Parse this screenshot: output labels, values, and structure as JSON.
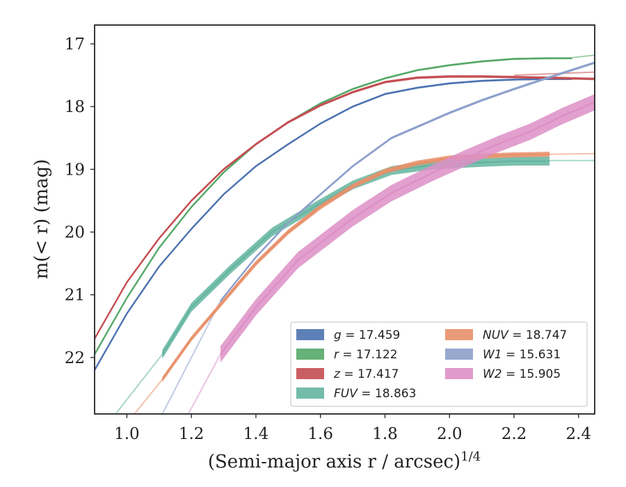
{
  "chart_data": {
    "type": "line",
    "xlabel": "(Semi-major axis r / arcsec)",
    "xlabel_sup": "1/4",
    "ylabel": "m(< r) (mag)",
    "xlim": [
      0.9,
      2.45
    ],
    "ylim": [
      22.9,
      16.7
    ],
    "y_inverted": true,
    "grid": false,
    "legend_placement": "lower-right",
    "xticks": [
      "1.0",
      "1.2",
      "1.4",
      "1.6",
      "1.8",
      "2.0",
      "2.2",
      "2.4"
    ],
    "yticks": [
      "17",
      "18",
      "19",
      "20",
      "21",
      "22"
    ],
    "series": [
      {
        "name": "g = 17.459",
        "label_var": "g",
        "label_val": "17.459",
        "color": "#4c72b0",
        "width_mag": 0.03,
        "x": [
          0.9,
          1.0,
          1.1,
          1.2,
          1.3,
          1.4,
          1.5,
          1.6,
          1.7,
          1.8,
          1.9,
          2.0,
          2.1,
          2.2,
          2.3,
          2.38
        ],
        "y": [
          22.2,
          21.3,
          20.55,
          19.95,
          19.4,
          18.95,
          18.6,
          18.27,
          18.0,
          17.8,
          17.7,
          17.63,
          17.59,
          17.57,
          17.56,
          17.56
        ],
        "ext_x": [
          2.38,
          2.45
        ],
        "ext_y": [
          17.56,
          17.55
        ]
      },
      {
        "name": "r = 17.122",
        "label_var": "r",
        "label_val": "17.122",
        "color": "#55a868",
        "width_mag": 0.03,
        "x": [
          0.9,
          1.0,
          1.1,
          1.2,
          1.3,
          1.4,
          1.5,
          1.6,
          1.7,
          1.8,
          1.9,
          2.0,
          2.1,
          2.2,
          2.3,
          2.38
        ],
        "y": [
          21.95,
          21.05,
          20.25,
          19.6,
          19.05,
          18.6,
          18.25,
          17.95,
          17.72,
          17.55,
          17.42,
          17.34,
          17.28,
          17.24,
          17.23,
          17.23
        ],
        "ext_x": [
          2.38,
          2.45
        ],
        "ext_y": [
          17.22,
          17.18
        ]
      },
      {
        "name": "z = 17.417",
        "label_var": "z",
        "label_val": "17.417",
        "color": "#c44e52",
        "width_mag": 0.04,
        "x": [
          0.9,
          1.0,
          1.1,
          1.2,
          1.3,
          1.4,
          1.5,
          1.6,
          1.7,
          1.8,
          1.9,
          2.0,
          2.1,
          2.2,
          2.3,
          2.45
        ],
        "y": [
          21.7,
          20.8,
          20.1,
          19.5,
          19.0,
          18.6,
          18.25,
          17.98,
          17.77,
          17.61,
          17.54,
          17.52,
          17.52,
          17.53,
          17.54,
          17.56
        ],
        "ext_x": [
          2.2,
          2.45
        ],
        "ext_y": [
          17.5,
          17.45
        ]
      },
      {
        "name": "FUV = 18.863",
        "label_var": "FUV",
        "label_val": "18.863",
        "color": "#64b5a0",
        "width_mag": 0.14,
        "start_x": 1.11,
        "x": [
          1.11,
          1.2,
          1.32,
          1.45,
          1.58,
          1.7,
          1.82,
          1.95,
          2.1,
          2.2,
          2.31
        ],
        "y": [
          21.95,
          21.2,
          20.6,
          20.0,
          19.6,
          19.25,
          19.02,
          18.93,
          18.89,
          18.87,
          18.87
        ],
        "ext_x": [
          0.95,
          1.11
        ],
        "ext_y": [
          23.0,
          21.95
        ],
        "ext2_x": [
          2.31,
          2.45
        ],
        "ext2_y": [
          18.86,
          18.86
        ]
      },
      {
        "name": "NUV = 18.747",
        "label_var": "NUV",
        "label_val": "18.747",
        "color": "#e8906a",
        "width_mag": 0.08,
        "start_x": 1.11,
        "x": [
          1.11,
          1.2,
          1.3,
          1.4,
          1.5,
          1.6,
          1.7,
          1.8,
          1.9,
          2.0,
          2.1,
          2.2,
          2.31
        ],
        "y": [
          22.35,
          21.7,
          21.1,
          20.5,
          20.0,
          19.6,
          19.27,
          19.03,
          18.9,
          18.82,
          18.79,
          18.77,
          18.76
        ],
        "ext_x": [
          1.0,
          1.11
        ],
        "ext_y": [
          23.05,
          22.35
        ],
        "ext2_x": [
          2.31,
          2.45
        ],
        "ext2_y": [
          18.76,
          18.75
        ]
      },
      {
        "name": "W1 = 15.631",
        "label_var": "W1",
        "label_val": "15.631",
        "color": "#8da0cb",
        "width_mag": 0.04,
        "x": [
          1.29,
          1.4,
          1.5,
          1.6,
          1.7,
          1.82,
          2.0,
          2.1,
          2.2,
          2.3,
          2.45
        ],
        "y": [
          21.1,
          20.4,
          19.85,
          19.4,
          18.95,
          18.5,
          18.1,
          17.9,
          17.72,
          17.55,
          17.3
        ],
        "ext_x": [
          1.11,
          1.29
        ],
        "ext_y": [
          22.9,
          21.1
        ]
      },
      {
        "name": "W2 = 15.905",
        "label_var": "W2",
        "label_val": "15.905",
        "color": "#dd8fc6",
        "width_mag": 0.26,
        "start_x": 1.29,
        "x": [
          1.29,
          1.4,
          1.53,
          1.7,
          1.82,
          1.95,
          2.05,
          2.15,
          2.25,
          2.35,
          2.45
        ],
        "y": [
          21.95,
          21.2,
          20.45,
          19.78,
          19.38,
          19.05,
          18.82,
          18.6,
          18.4,
          18.15,
          17.93
        ],
        "ext_x": [
          1.18,
          1.29
        ],
        "ext_y": [
          23.0,
          21.95
        ]
      }
    ]
  }
}
